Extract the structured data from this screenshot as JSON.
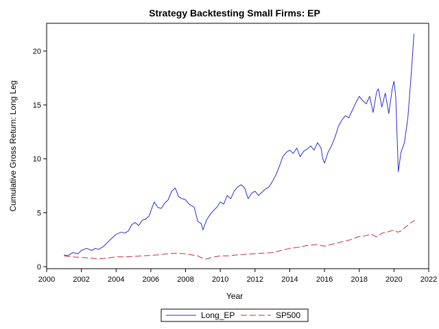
{
  "chart_data": {
    "type": "line",
    "title": "Strategy Backtesting Small Firms: EP",
    "xlabel": "Year",
    "ylabel": "Cumulative Gross Return: Long Leg",
    "xlim": [
      2000,
      2022
    ],
    "ylim": [
      0,
      22
    ],
    "xticks": [
      2000,
      2002,
      2004,
      2006,
      2008,
      2010,
      2012,
      2014,
      2016,
      2018,
      2020,
      2022
    ],
    "yticks": [
      0,
      5,
      10,
      15,
      20
    ],
    "grid": false,
    "legend_position": "bottom-center",
    "series": [
      {
        "name": "Long_EP",
        "color": "#2b2bd9",
        "style": "solid",
        "x": [
          2001.0,
          2001.2,
          2001.5,
          2001.8,
          2002.0,
          2002.3,
          2002.6,
          2002.8,
          2003.0,
          2003.3,
          2003.6,
          2003.8,
          2004.0,
          2004.3,
          2004.5,
          2004.7,
          2004.9,
          2005.1,
          2005.3,
          2005.5,
          2005.7,
          2005.9,
          2006.1,
          2006.2,
          2006.4,
          2006.6,
          2006.8,
          2007.0,
          2007.2,
          2007.4,
          2007.6,
          2007.8,
          2008.0,
          2008.2,
          2008.5,
          2008.7,
          2008.9,
          2009.0,
          2009.2,
          2009.4,
          2009.6,
          2009.8,
          2010.0,
          2010.2,
          2010.4,
          2010.6,
          2010.8,
          2011.0,
          2011.2,
          2011.4,
          2011.6,
          2011.8,
          2012.0,
          2012.2,
          2012.4,
          2012.6,
          2012.8,
          2013.0,
          2013.2,
          2013.4,
          2013.6,
          2013.8,
          2014.0,
          2014.2,
          2014.4,
          2014.6,
          2014.8,
          2015.0,
          2015.2,
          2015.4,
          2015.6,
          2015.8,
          2015.9,
          2016.0,
          2016.2,
          2016.4,
          2016.6,
          2016.8,
          2017.0,
          2017.2,
          2017.4,
          2017.6,
          2017.8,
          2018.0,
          2018.2,
          2018.4,
          2018.6,
          2018.8,
          2019.0,
          2019.1,
          2019.3,
          2019.5,
          2019.7,
          2019.9,
          2020.0,
          2020.1,
          2020.25,
          2020.4,
          2020.6,
          2020.8,
          2021.0,
          2021.15
        ],
        "values": [
          1.1,
          1.0,
          1.3,
          1.2,
          1.5,
          1.7,
          1.5,
          1.7,
          1.6,
          1.9,
          2.4,
          2.7,
          3.0,
          3.2,
          3.1,
          3.3,
          3.9,
          4.1,
          3.8,
          4.3,
          4.4,
          4.7,
          5.6,
          6.0,
          5.5,
          5.4,
          5.9,
          6.2,
          7.0,
          7.3,
          6.5,
          6.3,
          6.2,
          5.8,
          5.5,
          4.2,
          4.0,
          3.4,
          4.3,
          4.8,
          5.2,
          5.5,
          6.0,
          5.8,
          6.6,
          6.3,
          7.0,
          7.4,
          7.6,
          7.3,
          6.3,
          6.8,
          7.0,
          6.6,
          6.9,
          7.2,
          7.4,
          7.9,
          8.5,
          9.3,
          10.2,
          10.6,
          10.8,
          10.5,
          11.0,
          10.2,
          10.7,
          10.9,
          11.2,
          10.8,
          11.5,
          11.0,
          10.0,
          9.6,
          10.6,
          11.2,
          12.0,
          13.0,
          13.6,
          14.0,
          13.8,
          14.5,
          15.2,
          15.8,
          15.4,
          15.1,
          15.8,
          14.3,
          16.2,
          16.5,
          14.8,
          16.1,
          14.2,
          16.5,
          17.2,
          15.8,
          8.8,
          10.6,
          11.5,
          13.8,
          18.0,
          21.6
        ]
      },
      {
        "name": "SP500",
        "color": "#c8283c",
        "style": "dashed",
        "x": [
          2001.0,
          2001.5,
          2002.0,
          2002.5,
          2003.0,
          2003.5,
          2004.0,
          2004.5,
          2005.0,
          2005.5,
          2006.0,
          2006.5,
          2007.0,
          2007.5,
          2007.9,
          2008.3,
          2008.7,
          2009.0,
          2009.2,
          2009.5,
          2010.0,
          2010.5,
          2011.0,
          2011.5,
          2012.0,
          2012.5,
          2013.0,
          2013.5,
          2014.0,
          2014.5,
          2015.0,
          2015.5,
          2016.0,
          2016.5,
          2017.0,
          2017.5,
          2018.0,
          2018.3,
          2018.7,
          2019.0,
          2019.3,
          2019.6,
          2020.0,
          2020.2,
          2020.4,
          2020.7,
          2021.0,
          2021.2
        ],
        "values": [
          1.0,
          0.9,
          0.85,
          0.8,
          0.7,
          0.8,
          0.9,
          0.9,
          0.95,
          1.0,
          1.05,
          1.1,
          1.2,
          1.25,
          1.2,
          1.1,
          1.0,
          0.75,
          0.7,
          0.85,
          1.0,
          1.0,
          1.1,
          1.15,
          1.2,
          1.25,
          1.3,
          1.5,
          1.7,
          1.8,
          1.95,
          2.05,
          1.9,
          2.1,
          2.3,
          2.5,
          2.8,
          2.85,
          3.0,
          2.75,
          3.1,
          3.2,
          3.4,
          3.2,
          3.3,
          3.7,
          4.1,
          4.3
        ]
      }
    ]
  }
}
